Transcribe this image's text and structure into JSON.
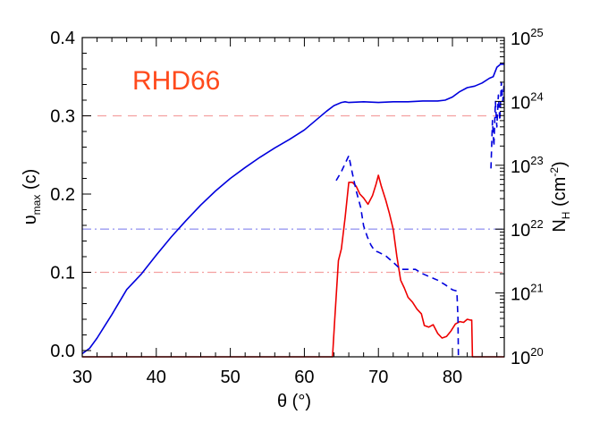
{
  "chart_data": {
    "type": "line",
    "annotation": "RHD66",
    "annotation_color": "#ff4a1c",
    "xlabel": "θ (°)",
    "ylabel_left": {
      "symbol": "υ",
      "sub": "max",
      "unit": " (c)"
    },
    "ylabel_right": {
      "base": "N",
      "sub": "H",
      "unit_pre": " (cm",
      "unit_sup": "-2",
      "unit_post": ")"
    },
    "xlim": [
      30,
      87
    ],
    "ylim_left": [
      -0.008,
      0.4
    ],
    "ylim_right_log10": [
      20,
      25
    ],
    "x_ticks": [
      {
        "v": 30,
        "label": "30"
      },
      {
        "v": 40,
        "label": "40"
      },
      {
        "v": 50,
        "label": "50"
      },
      {
        "v": 60,
        "label": "60"
      },
      {
        "v": 70,
        "label": "70"
      },
      {
        "v": 80,
        "label": "80"
      }
    ],
    "y_ticks_left": [
      {
        "v": 0.0,
        "label": "0.0"
      },
      {
        "v": 0.1,
        "label": "0.1"
      },
      {
        "v": 0.2,
        "label": "0.2"
      },
      {
        "v": 0.3,
        "label": "0.3"
      },
      {
        "v": 0.4,
        "label": "0.4"
      }
    ],
    "y_ticks_right": [
      {
        "v": 20,
        "base": "10",
        "exp": "20"
      },
      {
        "v": 21,
        "base": "10",
        "exp": "21"
      },
      {
        "v": 22,
        "base": "10",
        "exp": "22"
      },
      {
        "v": 23,
        "base": "10",
        "exp": "23"
      },
      {
        "v": 24,
        "base": "10",
        "exp": "24"
      },
      {
        "v": 25,
        "base": "10",
        "exp": "25"
      }
    ],
    "hlines": [
      {
        "axis": "left",
        "y": 0.3,
        "color": "#f4a0a0",
        "dash": "10,7"
      },
      {
        "axis": "left",
        "y": 0.1,
        "color": "#f4a0a0",
        "dash": "10,4,2,4"
      },
      {
        "axis": "right",
        "y": 22,
        "color": "#9a9af0",
        "dash": "10,4,2,4"
      }
    ],
    "series": [
      {
        "axis": "left",
        "color": "#0000dd",
        "dash": "",
        "x": [
          30,
          31,
          32,
          33,
          34,
          35,
          36,
          38,
          40,
          42,
          44,
          46,
          48,
          50,
          52,
          54,
          56,
          58,
          60,
          61,
          62,
          63,
          64,
          65,
          65.5,
          66,
          68,
          70,
          72,
          74,
          76,
          78,
          79,
          80,
          81,
          82,
          83,
          84,
          85,
          85.5,
          86,
          86.5,
          87
        ],
        "y": [
          -0.004,
          0.003,
          0.016,
          0.031,
          0.046,
          0.062,
          0.078,
          0.098,
          0.122,
          0.145,
          0.166,
          0.186,
          0.204,
          0.22,
          0.234,
          0.247,
          0.259,
          0.27,
          0.282,
          0.29,
          0.298,
          0.306,
          0.313,
          0.317,
          0.318,
          0.317,
          0.318,
          0.317,
          0.318,
          0.318,
          0.319,
          0.319,
          0.32,
          0.324,
          0.331,
          0.336,
          0.338,
          0.342,
          0.348,
          0.35,
          0.362,
          0.366,
          0.366
        ]
      },
      {
        "axis": "left",
        "color": "#ee0000",
        "dash": "",
        "x": [
          30,
          63.8,
          64.1,
          64.6,
          65.0,
          65.5,
          66.0,
          66.5,
          67.0,
          67.5,
          68.0,
          68.6,
          69.2,
          69.7,
          70.0,
          70.4,
          71.0,
          71.5,
          72.0,
          72.5,
          73.0,
          73.5,
          74.0,
          74.6,
          75.2,
          75.8,
          76.2,
          76.8,
          77.4,
          78.0,
          78.6,
          79.2,
          79.8,
          80.4,
          81.0,
          81.5,
          82.0,
          82.4,
          82.6,
          82.7,
          87
        ],
        "y": [
          -0.008,
          -0.008,
          0.04,
          0.115,
          0.13,
          0.17,
          0.215,
          0.215,
          0.21,
          0.2,
          0.195,
          0.187,
          0.198,
          0.213,
          0.224,
          0.21,
          0.192,
          0.175,
          0.155,
          0.12,
          0.09,
          0.08,
          0.068,
          0.062,
          0.053,
          0.047,
          0.032,
          0.03,
          0.033,
          0.022,
          0.016,
          0.018,
          0.025,
          0.034,
          0.037,
          0.036,
          0.04,
          0.039,
          0.039,
          -0.008,
          -0.008
        ]
      },
      {
        "axis": "right",
        "color": "#0000dd",
        "dash": "7,5",
        "x": [
          64.3,
          65.0,
          66.0,
          66.4,
          67.0,
          67.6,
          68.0,
          68.5,
          69.0,
          69.5,
          70.0,
          71.0,
          72.0,
          73.0,
          74.0,
          75.0,
          76.0,
          77.0,
          78.0,
          79.0,
          80.0,
          80.6,
          80.75,
          80.8
        ],
        "y": [
          22.76,
          22.9,
          23.15,
          22.92,
          22.6,
          22.34,
          22.05,
          21.88,
          21.75,
          21.66,
          21.64,
          21.58,
          21.48,
          21.37,
          21.37,
          21.37,
          21.3,
          21.25,
          21.2,
          21.13,
          21.05,
          21.03,
          20.6,
          20.0
        ]
      },
      {
        "axis": "right",
        "color": "#0000dd",
        "dash": "7,5",
        "x": [
          85.2,
          85.4,
          85.6,
          85.8,
          86.0,
          86.2,
          86.4,
          86.6,
          86.8,
          87.0
        ],
        "y": [
          22.95,
          23.7,
          23.3,
          24.0,
          23.6,
          24.1,
          23.7,
          24.3,
          24.0,
          24.3
        ]
      }
    ]
  }
}
